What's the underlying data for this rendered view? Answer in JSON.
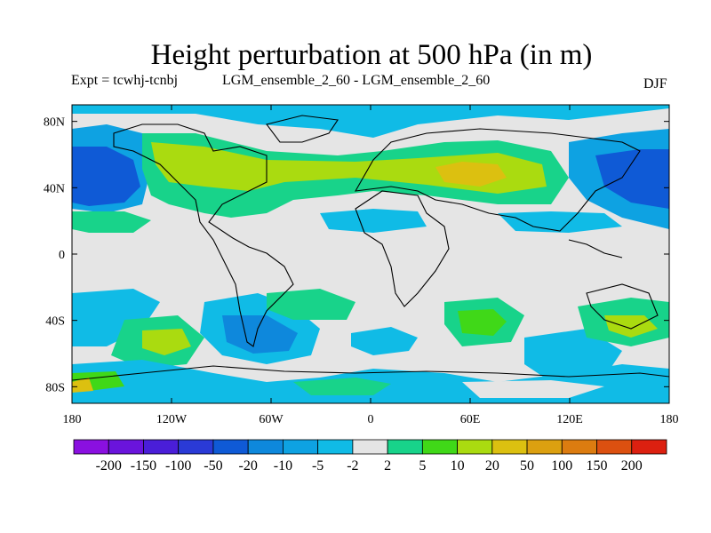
{
  "title": "Height perturbation at 500 hPa (in m)",
  "expt_label": "Expt = tcwhj-tcnbj",
  "runs_label": "LGM_ensemble_2_60 - LGM_ensemble_2_60",
  "season": "DJF",
  "map": {
    "projection": "cylindrical equidistant",
    "lon_range": [
      -180,
      180
    ],
    "lat_range": [
      -90,
      90
    ],
    "lat_ticks": [
      {
        "value": 80,
        "label": "80N"
      },
      {
        "value": 40,
        "label": "40N"
      },
      {
        "value": 0,
        "label": "0"
      },
      {
        "value": -40,
        "label": "40S"
      },
      {
        "value": -80,
        "label": "80S"
      }
    ],
    "lon_ticks": [
      {
        "value": -180,
        "label": "180"
      },
      {
        "value": -120,
        "label": "120W"
      },
      {
        "value": -60,
        "label": "60W"
      },
      {
        "value": 0,
        "label": "0"
      },
      {
        "value": 60,
        "label": "60E"
      },
      {
        "value": 120,
        "label": "120E"
      },
      {
        "value": 180,
        "label": "180"
      }
    ]
  },
  "colorbar": {
    "colors": [
      "#8a10e0",
      "#6a14dc",
      "#4a1ed8",
      "#2a3ad6",
      "#0f5ad6",
      "#0e88dc",
      "#0ea2e2",
      "#10bbe6",
      "#e5e5e5",
      "#18d38a",
      "#40d818",
      "#aadb10",
      "#dcc010",
      "#dca010",
      "#dc7c10",
      "#dc5010",
      "#dc2010"
    ],
    "labels": [
      "-200",
      "-150",
      "-100",
      "-50",
      "-20",
      "-10",
      "-5",
      "-2",
      "2",
      "5",
      "10",
      "20",
      "50",
      "100",
      "150",
      "200"
    ]
  }
}
